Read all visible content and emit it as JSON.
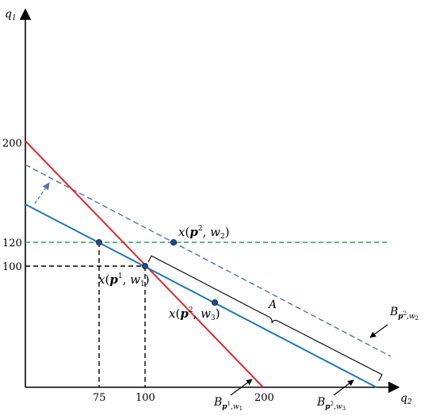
{
  "axes": {
    "y_label": "q",
    "y_label_sub": "1",
    "x_label": "q",
    "x_label_sub": "2",
    "y_ticks": [
      "200",
      "120",
      "100"
    ],
    "x_ticks": [
      "75",
      "100",
      "200"
    ]
  },
  "labels": {
    "point_p2w2": {
      "pre": "x",
      "p": "p",
      "sup": "2",
      "w": "w",
      "wsub": "2"
    },
    "point_p1w1": {
      "pre": "x",
      "p": "p",
      "sup": "1",
      "w": "w",
      "wsub": "1"
    },
    "point_p2w3": {
      "pre": "x",
      "p": "p",
      "sup": "2",
      "w": "w",
      "wsub": "3"
    },
    "segment_A": "A",
    "budget_p2w2": {
      "B": "B",
      "p": "p",
      "sup": "2",
      "w": "w",
      "wsub": "2"
    },
    "budget_p1w1": {
      "B": "B",
      "p": "p",
      "sup": "1",
      "w": "w",
      "wsub": "1"
    },
    "budget_p2w3": {
      "B": "B",
      "p": "p",
      "sup": "2",
      "w": "w",
      "wsub": "3"
    }
  },
  "colors": {
    "budget_p1w1": "#e0282e",
    "budget_p2w3": "#1f77b4",
    "budget_p2w2": "#5b6fa8",
    "level_120": "#2e9e5a",
    "point_fill": "#1f4f8a",
    "axis": "#000000",
    "guide": "#000000"
  }
}
